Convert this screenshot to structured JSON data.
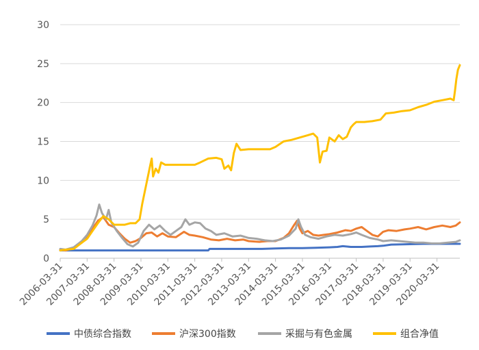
{
  "chart_data": {
    "type": "line",
    "title": "",
    "xlabel": "",
    "ylabel": "",
    "ylim": [
      0,
      30
    ],
    "y_ticks": [
      "0",
      "5",
      "10",
      "15",
      "20",
      "25",
      "30"
    ],
    "x_tick_labels": [
      "2006-03-31",
      "2007-03-31",
      "2008-03-31",
      "2009-03-31",
      "2010-03-31",
      "2011-03-31",
      "2012-03-31",
      "2013-03-31",
      "2014-03-31",
      "2015-03-31",
      "2016-03-31",
      "2017-03-31",
      "2018-03-31",
      "2019-03-31",
      "2020-03-31"
    ],
    "x_range": [
      2006.0,
      2020.85
    ],
    "grid": "horizontal",
    "legend_position": "bottom",
    "series": [
      {
        "name": "中债综合指数",
        "color": "#4472C4",
        "points": [
          [
            2006.0,
            1.0
          ],
          [
            2008.0,
            1.0
          ],
          [
            2010.0,
            1.0
          ],
          [
            2011.0,
            1.0
          ],
          [
            2011.5,
            1.0
          ],
          [
            2011.55,
            1.2
          ],
          [
            2012.5,
            1.2
          ],
          [
            2013.5,
            1.2
          ],
          [
            2014.0,
            1.25
          ],
          [
            2014.5,
            1.3
          ],
          [
            2015.0,
            1.3
          ],
          [
            2015.5,
            1.35
          ],
          [
            2016.0,
            1.4
          ],
          [
            2016.3,
            1.45
          ],
          [
            2016.5,
            1.55
          ],
          [
            2016.8,
            1.45
          ],
          [
            2017.2,
            1.45
          ],
          [
            2017.5,
            1.5
          ],
          [
            2017.8,
            1.55
          ],
          [
            2018.0,
            1.6
          ],
          [
            2018.3,
            1.75
          ],
          [
            2019.0,
            1.8
          ],
          [
            2019.5,
            1.85
          ],
          [
            2020.0,
            1.85
          ],
          [
            2020.85,
            1.85
          ]
        ]
      },
      {
        "name": "沪深300指数",
        "color": "#ED7D31",
        "points": [
          [
            2006.0,
            1.1
          ],
          [
            2006.2,
            1.0
          ],
          [
            2006.5,
            1.3
          ],
          [
            2006.8,
            2.0
          ],
          [
            2007.0,
            2.7
          ],
          [
            2007.2,
            3.8
          ],
          [
            2007.4,
            4.8
          ],
          [
            2007.6,
            5.3
          ],
          [
            2007.8,
            4.3
          ],
          [
            2008.0,
            4.0
          ],
          [
            2008.2,
            3.2
          ],
          [
            2008.4,
            2.5
          ],
          [
            2008.6,
            2.0
          ],
          [
            2008.8,
            2.2
          ],
          [
            2009.0,
            2.6
          ],
          [
            2009.2,
            3.2
          ],
          [
            2009.4,
            3.3
          ],
          [
            2009.6,
            2.8
          ],
          [
            2009.8,
            3.2
          ],
          [
            2010.0,
            2.8
          ],
          [
            2010.3,
            2.7
          ],
          [
            2010.6,
            3.4
          ],
          [
            2010.8,
            3.0
          ],
          [
            2011.0,
            2.9
          ],
          [
            2011.3,
            2.7
          ],
          [
            2011.6,
            2.4
          ],
          [
            2011.9,
            2.3
          ],
          [
            2012.2,
            2.5
          ],
          [
            2012.5,
            2.3
          ],
          [
            2012.8,
            2.4
          ],
          [
            2013.0,
            2.2
          ],
          [
            2013.4,
            2.1
          ],
          [
            2013.7,
            2.2
          ],
          [
            2014.0,
            2.2
          ],
          [
            2014.3,
            2.6
          ],
          [
            2014.5,
            3.2
          ],
          [
            2014.7,
            4.3
          ],
          [
            2014.8,
            4.8
          ],
          [
            2014.9,
            3.8
          ],
          [
            2015.0,
            3.2
          ],
          [
            2015.2,
            3.5
          ],
          [
            2015.4,
            3.0
          ],
          [
            2015.6,
            2.9
          ],
          [
            2015.8,
            3.0
          ],
          [
            2016.0,
            3.1
          ],
          [
            2016.3,
            3.3
          ],
          [
            2016.6,
            3.6
          ],
          [
            2016.8,
            3.5
          ],
          [
            2017.0,
            3.8
          ],
          [
            2017.2,
            4.0
          ],
          [
            2017.4,
            3.5
          ],
          [
            2017.6,
            3.0
          ],
          [
            2017.8,
            2.8
          ],
          [
            2018.0,
            3.4
          ],
          [
            2018.2,
            3.6
          ],
          [
            2018.5,
            3.5
          ],
          [
            2018.8,
            3.7
          ],
          [
            2019.0,
            3.8
          ],
          [
            2019.3,
            4.0
          ],
          [
            2019.6,
            3.7
          ],
          [
            2019.9,
            4.0
          ],
          [
            2020.2,
            4.2
          ],
          [
            2020.5,
            4.0
          ],
          [
            2020.7,
            4.2
          ],
          [
            2020.85,
            4.6
          ]
        ]
      },
      {
        "name": "采掘与有色金属",
        "color": "#A5A5A5",
        "points": [
          [
            2006.0,
            1.2
          ],
          [
            2006.2,
            1.1
          ],
          [
            2006.5,
            1.4
          ],
          [
            2006.8,
            2.2
          ],
          [
            2007.0,
            3.0
          ],
          [
            2007.2,
            4.2
          ],
          [
            2007.35,
            5.5
          ],
          [
            2007.45,
            6.9
          ],
          [
            2007.55,
            5.8
          ],
          [
            2007.7,
            5.0
          ],
          [
            2007.8,
            6.2
          ],
          [
            2007.9,
            4.6
          ],
          [
            2008.1,
            3.5
          ],
          [
            2008.3,
            2.6
          ],
          [
            2008.5,
            1.8
          ],
          [
            2008.7,
            1.5
          ],
          [
            2008.9,
            2.0
          ],
          [
            2009.1,
            3.5
          ],
          [
            2009.3,
            4.3
          ],
          [
            2009.5,
            3.7
          ],
          [
            2009.7,
            4.2
          ],
          [
            2009.9,
            3.5
          ],
          [
            2010.1,
            3.0
          ],
          [
            2010.3,
            3.5
          ],
          [
            2010.5,
            4.0
          ],
          [
            2010.65,
            5.0
          ],
          [
            2010.8,
            4.3
          ],
          [
            2011.0,
            4.6
          ],
          [
            2011.2,
            4.5
          ],
          [
            2011.4,
            3.8
          ],
          [
            2011.6,
            3.5
          ],
          [
            2011.8,
            3.0
          ],
          [
            2012.1,
            3.2
          ],
          [
            2012.4,
            2.8
          ],
          [
            2012.7,
            2.9
          ],
          [
            2013.0,
            2.6
          ],
          [
            2013.3,
            2.5
          ],
          [
            2013.6,
            2.3
          ],
          [
            2013.9,
            2.2
          ],
          [
            2014.2,
            2.4
          ],
          [
            2014.5,
            2.9
          ],
          [
            2014.75,
            3.8
          ],
          [
            2014.85,
            5.0
          ],
          [
            2014.95,
            4.0
          ],
          [
            2015.1,
            3.0
          ],
          [
            2015.3,
            2.7
          ],
          [
            2015.6,
            2.5
          ],
          [
            2015.9,
            2.8
          ],
          [
            2016.2,
            3.0
          ],
          [
            2016.5,
            2.9
          ],
          [
            2016.8,
            3.1
          ],
          [
            2017.0,
            3.3
          ],
          [
            2017.2,
            3.0
          ],
          [
            2017.5,
            2.6
          ],
          [
            2017.8,
            2.4
          ],
          [
            2018.0,
            2.2
          ],
          [
            2018.3,
            2.3
          ],
          [
            2018.6,
            2.2
          ],
          [
            2018.9,
            2.1
          ],
          [
            2019.2,
            2.0
          ],
          [
            2019.5,
            2.0
          ],
          [
            2019.8,
            1.9
          ],
          [
            2020.1,
            1.9
          ],
          [
            2020.4,
            2.0
          ],
          [
            2020.7,
            2.1
          ],
          [
            2020.85,
            2.3
          ]
        ]
      },
      {
        "name": "组合净值",
        "color": "#FFC000",
        "points": [
          [
            2006.0,
            1.0
          ],
          [
            2006.2,
            1.1
          ],
          [
            2006.5,
            1.2
          ],
          [
            2006.8,
            2.0
          ],
          [
            2007.0,
            2.5
          ],
          [
            2007.2,
            3.5
          ],
          [
            2007.4,
            4.5
          ],
          [
            2007.6,
            5.4
          ],
          [
            2007.8,
            5.0
          ],
          [
            2008.0,
            4.3
          ],
          [
            2008.2,
            4.3
          ],
          [
            2008.4,
            4.3
          ],
          [
            2008.6,
            4.5
          ],
          [
            2008.8,
            4.5
          ],
          [
            2008.95,
            5.0
          ],
          [
            2009.05,
            7.0
          ],
          [
            2009.2,
            9.5
          ],
          [
            2009.35,
            12.0
          ],
          [
            2009.4,
            12.8
          ],
          [
            2009.45,
            10.5
          ],
          [
            2009.55,
            11.5
          ],
          [
            2009.65,
            11.0
          ],
          [
            2009.75,
            12.3
          ],
          [
            2009.9,
            12.0
          ],
          [
            2010.5,
            12.0
          ],
          [
            2011.0,
            12.0
          ],
          [
            2011.2,
            12.3
          ],
          [
            2011.5,
            12.8
          ],
          [
            2011.8,
            12.9
          ],
          [
            2012.0,
            12.7
          ],
          [
            2012.1,
            11.5
          ],
          [
            2012.25,
            11.9
          ],
          [
            2012.35,
            11.3
          ],
          [
            2012.45,
            13.5
          ],
          [
            2012.55,
            14.7
          ],
          [
            2012.7,
            13.9
          ],
          [
            2013.0,
            14.0
          ],
          [
            2013.5,
            14.0
          ],
          [
            2013.8,
            14.0
          ],
          [
            2014.0,
            14.3
          ],
          [
            2014.3,
            15.0
          ],
          [
            2014.6,
            15.2
          ],
          [
            2014.9,
            15.5
          ],
          [
            2015.2,
            15.8
          ],
          [
            2015.4,
            16.0
          ],
          [
            2015.55,
            15.5
          ],
          [
            2015.65,
            12.3
          ],
          [
            2015.75,
            13.7
          ],
          [
            2015.9,
            13.8
          ],
          [
            2016.0,
            15.5
          ],
          [
            2016.2,
            15.0
          ],
          [
            2016.35,
            15.8
          ],
          [
            2016.5,
            15.3
          ],
          [
            2016.65,
            15.6
          ],
          [
            2016.8,
            16.8
          ],
          [
            2016.9,
            17.2
          ],
          [
            2017.0,
            17.5
          ],
          [
            2017.3,
            17.5
          ],
          [
            2017.6,
            17.6
          ],
          [
            2017.9,
            17.8
          ],
          [
            2018.1,
            18.6
          ],
          [
            2018.4,
            18.7
          ],
          [
            2018.7,
            18.9
          ],
          [
            2019.0,
            19.0
          ],
          [
            2019.3,
            19.4
          ],
          [
            2019.6,
            19.7
          ],
          [
            2019.9,
            20.1
          ],
          [
            2020.2,
            20.3
          ],
          [
            2020.5,
            20.5
          ],
          [
            2020.62,
            20.3
          ],
          [
            2020.67,
            21.5
          ],
          [
            2020.72,
            23.0
          ],
          [
            2020.78,
            24.2
          ],
          [
            2020.85,
            24.8
          ]
        ]
      }
    ]
  }
}
